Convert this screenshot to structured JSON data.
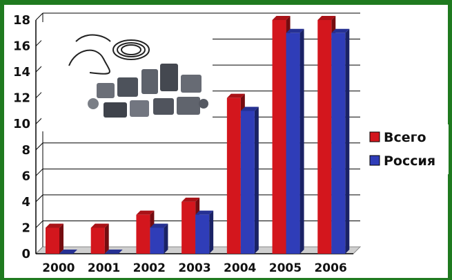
{
  "chart_data": {
    "type": "bar",
    "title": "",
    "xlabel": "",
    "ylabel": "",
    "categories": [
      "2000",
      "2001",
      "2002",
      "2003",
      "2004",
      "2005",
      "2006"
    ],
    "series": [
      {
        "name": "Всего",
        "values": [
          2,
          2,
          3,
          4,
          12,
          18,
          18
        ],
        "color": "#d3161d"
      },
      {
        "name": "Россия",
        "values": [
          0,
          0,
          2,
          3,
          11,
          17,
          17
        ],
        "color": "#2f3db8"
      }
    ],
    "ylim": [
      0,
      18
    ],
    "yticks": [
      0,
      2,
      4,
      6,
      8,
      10,
      12,
      14,
      16,
      18
    ],
    "grid": true,
    "legend": "right",
    "style": "3d-bar",
    "inset_image": "photo of automotive pneumatic and electrical components",
    "colors": {
      "background": "#1f7a1f",
      "grid": "#000000"
    }
  }
}
